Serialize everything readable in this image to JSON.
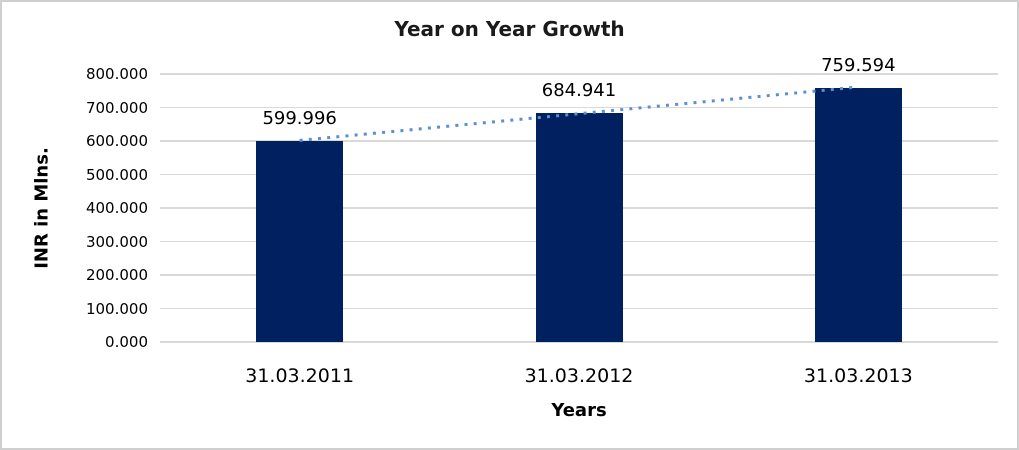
{
  "chart_data": {
    "type": "bar",
    "title": "Year on Year Growth",
    "categories": [
      "31.03.2011",
      "31.03.2012",
      "31.03.2013"
    ],
    "values": [
      599.996,
      684.941,
      759.594
    ],
    "data_labels": [
      "599.996",
      "684.941",
      "759.594"
    ],
    "xlabel": "Years",
    "ylabel": "INR in Mlns.",
    "ylim": [
      0,
      800
    ],
    "ytick_step": 100,
    "ytick_decimals": 3,
    "grid": true,
    "legend": "none",
    "trendline": {
      "type": "linear",
      "style": "dotted"
    },
    "colors": {
      "bar": "#002060",
      "trendline": "#5B8FD5",
      "gridline": "#D9D9D9",
      "text": "#000000",
      "title_text": "#1a1a1a",
      "chart_border": "#CFCFCF",
      "background": "#FFFFFF"
    }
  }
}
